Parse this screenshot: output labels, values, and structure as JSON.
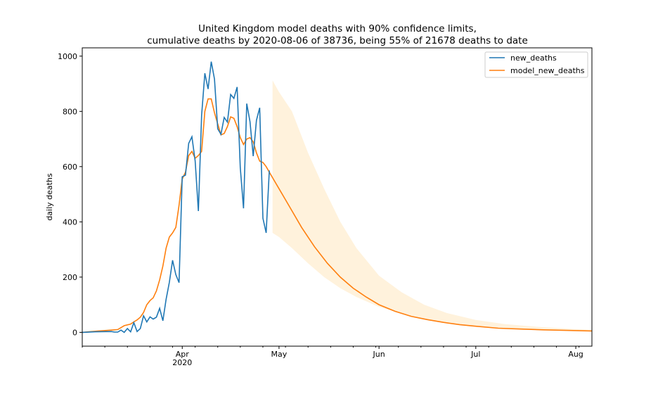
{
  "chart_data": {
    "type": "line",
    "title": "United Kingdom model deaths with 90% confidence limits,",
    "subtitle": "cumulative deaths by 2020-08-06 of 38736, being 55% of 21678 deaths to date",
    "xlabel": "",
    "ylabel": "daily deaths",
    "ylim": [
      -50,
      1030
    ],
    "xlim": [
      "2020-03-01",
      "2020-08-06"
    ],
    "grid": false,
    "legend_position": "top-right",
    "x_ticks": [
      {
        "date": "2020-04-01",
        "label": "Apr",
        "sublabel": "2020"
      },
      {
        "date": "2020-05-01",
        "label": "May",
        "sublabel": ""
      },
      {
        "date": "2020-06-01",
        "label": "Jun",
        "sublabel": ""
      },
      {
        "date": "2020-07-01",
        "label": "Jul",
        "sublabel": ""
      },
      {
        "date": "2020-08-01",
        "label": "Aug",
        "sublabel": ""
      }
    ],
    "y_ticks": [
      0,
      200,
      400,
      600,
      800,
      1000
    ],
    "colors": {
      "new_deaths": "#1f77b4",
      "model_new_deaths": "#ff7f0e",
      "confidence_band": "#fff2dc"
    },
    "series": [
      {
        "name": "new_deaths",
        "x": [
          "2020-03-01",
          "2020-03-05",
          "2020-03-10",
          "2020-03-11",
          "2020-03-12",
          "2020-03-13",
          "2020-03-14",
          "2020-03-15",
          "2020-03-16",
          "2020-03-17",
          "2020-03-18",
          "2020-03-19",
          "2020-03-20",
          "2020-03-21",
          "2020-03-22",
          "2020-03-23",
          "2020-03-24",
          "2020-03-25",
          "2020-03-26",
          "2020-03-27",
          "2020-03-28",
          "2020-03-29",
          "2020-03-30",
          "2020-03-31",
          "2020-04-01",
          "2020-04-02",
          "2020-04-03",
          "2020-04-04",
          "2020-04-05",
          "2020-04-06",
          "2020-04-07",
          "2020-04-08",
          "2020-04-09",
          "2020-04-10",
          "2020-04-11",
          "2020-04-12",
          "2020-04-13",
          "2020-04-14",
          "2020-04-15",
          "2020-04-16",
          "2020-04-17",
          "2020-04-18",
          "2020-04-19",
          "2020-04-20",
          "2020-04-21",
          "2020-04-22",
          "2020-04-23",
          "2020-04-24",
          "2020-04-25",
          "2020-04-26",
          "2020-04-27",
          "2020-04-28",
          "2020-04-29",
          "2020-04-30"
        ],
        "values": [
          0,
          2,
          3,
          1,
          1,
          8,
          0,
          14,
          2,
          35,
          3,
          14,
          60,
          38,
          56,
          48,
          55,
          87,
          42,
          120,
          181,
          261,
          209,
          180,
          563,
          569,
          684,
          708,
          621,
          439,
          786,
          938,
          881,
          980,
          917,
          737,
          717,
          778,
          761,
          861,
          847,
          888,
          596,
          449,
          828,
          763,
          638,
          768,
          813,
          413,
          360,
          586,
          null,
          null
        ]
      },
      {
        "name": "model_new_deaths",
        "x": [
          "2020-03-01",
          "2020-03-06",
          "2020-03-10",
          "2020-03-12",
          "2020-03-14",
          "2020-03-16",
          "2020-03-17",
          "2020-03-18",
          "2020-03-19",
          "2020-03-20",
          "2020-03-21",
          "2020-03-22",
          "2020-03-23",
          "2020-03-24",
          "2020-03-25",
          "2020-03-26",
          "2020-03-27",
          "2020-03-28",
          "2020-03-29",
          "2020-03-30",
          "2020-03-31",
          "2020-04-01",
          "2020-04-02",
          "2020-04-03",
          "2020-04-04",
          "2020-04-05",
          "2020-04-06",
          "2020-04-07",
          "2020-04-08",
          "2020-04-09",
          "2020-04-10",
          "2020-04-11",
          "2020-04-12",
          "2020-04-13",
          "2020-04-14",
          "2020-04-15",
          "2020-04-16",
          "2020-04-17",
          "2020-04-18",
          "2020-04-19",
          "2020-04-20",
          "2020-04-21",
          "2020-04-22",
          "2020-04-23",
          "2020-04-24",
          "2020-04-25",
          "2020-04-26",
          "2020-04-27",
          "2020-04-28",
          "2020-04-29",
          "2020-04-30",
          "2020-05-01",
          "2020-05-03",
          "2020-05-05",
          "2020-05-08",
          "2020-05-12",
          "2020-05-16",
          "2020-05-20",
          "2020-05-24",
          "2020-05-28",
          "2020-06-01",
          "2020-06-06",
          "2020-06-11",
          "2020-06-16",
          "2020-06-21",
          "2020-06-26",
          "2020-07-01",
          "2020-07-08",
          "2020-07-15",
          "2020-07-22",
          "2020-07-29",
          "2020-08-06"
        ],
        "values": [
          0,
          5,
          8,
          10,
          24,
          30,
          38,
          45,
          55,
          72,
          100,
          115,
          125,
          150,
          190,
          240,
          305,
          345,
          360,
          380,
          460,
          555,
          580,
          640,
          655,
          630,
          640,
          655,
          800,
          845,
          845,
          795,
          755,
          715,
          720,
          745,
          780,
          775,
          745,
          705,
          680,
          700,
          705,
          690,
          650,
          620,
          615,
          600,
          580,
          560,
          540,
          520,
          480,
          440,
          380,
          310,
          250,
          200,
          160,
          128,
          100,
          76,
          58,
          46,
          36,
          28,
          22,
          15,
          12,
          9,
          7,
          5
        ]
      }
    ],
    "confidence_band": {
      "x": [
        "2020-04-29",
        "2020-05-01",
        "2020-05-05",
        "2020-05-10",
        "2020-05-15",
        "2020-05-20",
        "2020-05-25",
        "2020-06-01",
        "2020-06-08",
        "2020-06-15",
        "2020-06-22",
        "2020-07-01",
        "2020-07-10",
        "2020-07-20",
        "2020-08-01",
        "2020-08-06"
      ],
      "upper": [
        912,
        870,
        800,
        650,
        520,
        400,
        305,
        205,
        145,
        100,
        70,
        45,
        30,
        20,
        12,
        9
      ],
      "lower": [
        360,
        345,
        305,
        250,
        200,
        160,
        128,
        92,
        68,
        48,
        34,
        22,
        15,
        10,
        6,
        4
      ]
    }
  }
}
